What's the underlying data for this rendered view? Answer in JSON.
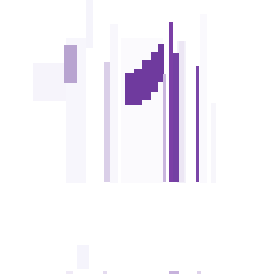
{
  "colors": {
    "background": "#ffffff",
    "accent_purple": "#6f3a9e",
    "lilac": "#b8a4d0",
    "pale_lilac": "#dacfe8"
  }
}
